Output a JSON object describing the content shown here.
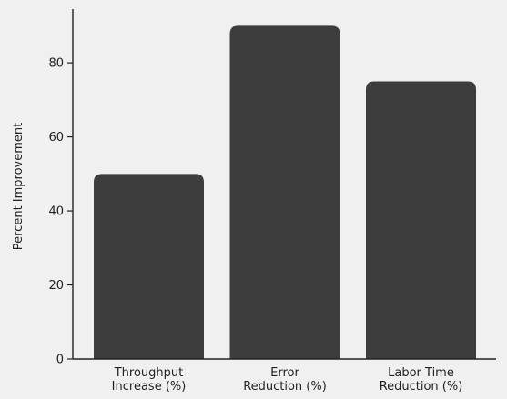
{
  "chart_data": {
    "type": "bar",
    "title": "",
    "xlabel": "",
    "ylabel": "Percent Improvement",
    "categories": [
      [
        "Throughput",
        "Increase (%)"
      ],
      [
        "Error",
        "Reduction (%)"
      ],
      [
        "Labor Time",
        "Reduction (%)"
      ]
    ],
    "values": [
      50,
      90,
      75
    ],
    "ylim": [
      0,
      95
    ],
    "yticks": [
      0,
      20,
      40,
      60,
      80
    ],
    "grid": false,
    "legend": "none",
    "bar_color": "#3d3d3d",
    "axis_color": "#222222",
    "background": "#f0f0f0"
  }
}
